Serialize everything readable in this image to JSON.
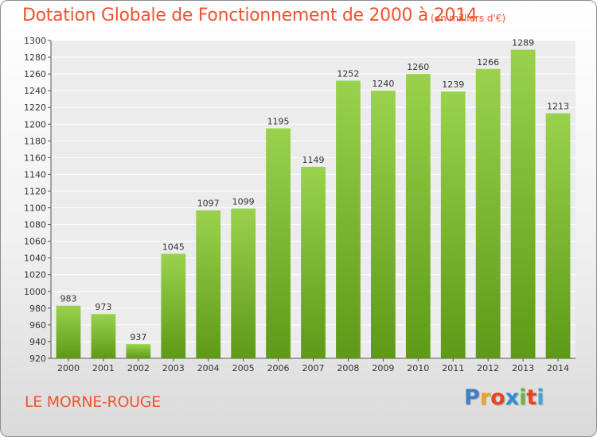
{
  "title": "Dotation Globale de Fonctionnement de 2000 à 2014",
  "subtitle": "(en milliers d'€)",
  "commune": "LE MORNE-ROUGE",
  "logo": {
    "letters": [
      "P",
      "r",
      "o",
      "x",
      "i",
      "t",
      "i"
    ],
    "colors": [
      "#3f7ec6",
      "#f2a31b",
      "#e8451e",
      "#2c8fcf",
      "#6db33f",
      "#e8451e",
      "#3fa5d6"
    ]
  },
  "colors": {
    "bar_top": "#9ad24c",
    "bar_bottom": "#5e9a17",
    "accent": "#ef5330"
  },
  "chart_data": {
    "type": "bar",
    "categories": [
      "2000",
      "2001",
      "2002",
      "2003",
      "2004",
      "2005",
      "2006",
      "2007",
      "2008",
      "2009",
      "2010",
      "2011",
      "2012",
      "2013",
      "2014"
    ],
    "values": [
      983,
      973,
      937,
      1045,
      1097,
      1099,
      1195,
      1149,
      1252,
      1240,
      1260,
      1239,
      1266,
      1289,
      1213
    ],
    "ylim": [
      920,
      1300
    ],
    "yticks": [
      920,
      940,
      960,
      980,
      1000,
      1020,
      1040,
      1060,
      1080,
      1100,
      1120,
      1140,
      1160,
      1180,
      1200,
      1220,
      1240,
      1260,
      1280,
      1300
    ],
    "grid": true,
    "data_labels": true
  }
}
